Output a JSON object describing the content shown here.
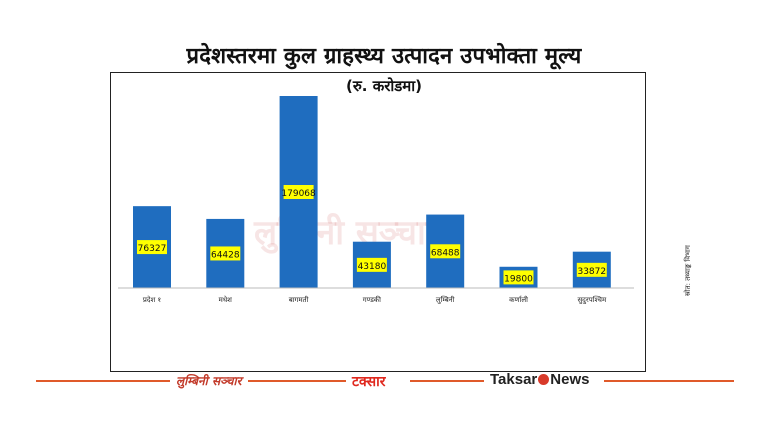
{
  "title": "प्रदेशस्तरमा कुल ग्राहस्थ्य उत्पादन उपभोक्ता मूल्य",
  "subtitle": "(रु. करोडमा)",
  "watermark": "लुम्बिनी सञ्चार",
  "side_credit": "स्रोत: तथ्याङ्क विभाग",
  "footer": {
    "logo1": "लुम्बिनी सञ्चार",
    "logo1_tag": "लुम्बिनी सञ्चार",
    "logo2": "टक्सार",
    "logo3_left": "Taksar",
    "logo3_right": "News"
  },
  "colors": {
    "bar": "#1f6dbf",
    "label_bg": "#ffff00",
    "footer": "#e05a2a"
  },
  "chart_data": {
    "type": "bar",
    "title": "प्रदेशस्तरमा कुल ग्राहस्थ्य उत्पादन उपभोक्ता मूल्य",
    "subtitle": "(रु. करोडमा)",
    "categories": [
      "प्रदेश १",
      "मधेश",
      "बागमती",
      "गण्डकी",
      "लुम्बिनी",
      "कर्णाली",
      "सुदुरपश्चिम"
    ],
    "values": [
      76327,
      64428,
      179068,
      43180,
      68488,
      19800,
      33872
    ],
    "ylim": [
      0,
      179068
    ],
    "grid": false,
    "legend": "none"
  }
}
